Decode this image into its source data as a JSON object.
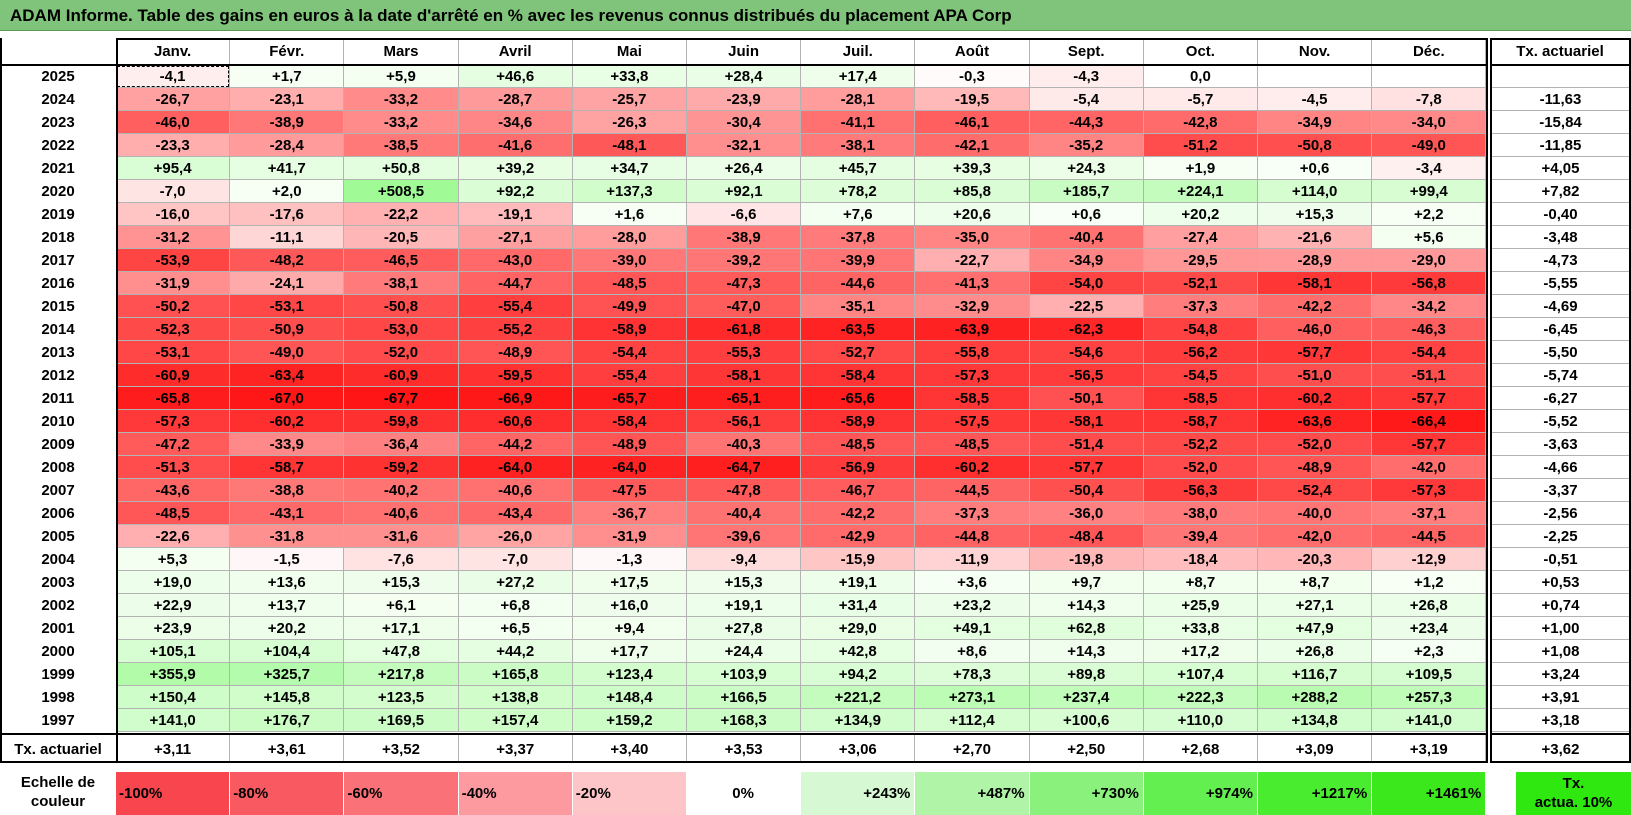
{
  "title": "ADAM Informe. Table des gains en euros à la date d'arrêté en % avec les revenus connus distribués du placement APA Corp",
  "months": [
    "Janv.",
    "Févr.",
    "Mars",
    "Avril",
    "Mai",
    "Juin",
    "Juil.",
    "Août",
    "Sept.",
    "Oct.",
    "Nov.",
    "Déc."
  ],
  "rate_header": "Tx. actuariel",
  "rows": [
    {
      "year": "2025",
      "values": [
        "-4,1",
        "+1,7",
        "+5,9",
        "+46,6",
        "+33,8",
        "+28,4",
        "+17,4",
        "-0,3",
        "-4,3",
        "0,0",
        "",
        ""
      ],
      "rate": ""
    },
    {
      "year": "2024",
      "values": [
        "-26,7",
        "-23,1",
        "-33,2",
        "-28,7",
        "-25,7",
        "-23,9",
        "-28,1",
        "-19,5",
        "-5,4",
        "-5,7",
        "-4,5",
        "-7,8"
      ],
      "rate": "-11,63"
    },
    {
      "year": "2023",
      "values": [
        "-46,0",
        "-38,9",
        "-33,2",
        "-34,6",
        "-26,3",
        "-30,4",
        "-41,1",
        "-46,1",
        "-44,3",
        "-42,8",
        "-34,9",
        "-34,0"
      ],
      "rate": "-15,84"
    },
    {
      "year": "2022",
      "values": [
        "-23,3",
        "-28,4",
        "-38,5",
        "-41,6",
        "-48,1",
        "-32,1",
        "-38,1",
        "-42,1",
        "-35,2",
        "-51,2",
        "-50,8",
        "-49,0"
      ],
      "rate": "-11,85"
    },
    {
      "year": "2021",
      "values": [
        "+95,4",
        "+41,7",
        "+50,8",
        "+39,2",
        "+34,7",
        "+26,4",
        "+45,7",
        "+39,3",
        "+24,3",
        "+1,9",
        "+0,6",
        "-3,4"
      ],
      "rate": "+4,05"
    },
    {
      "year": "2020",
      "values": [
        "-7,0",
        "+2,0",
        "+508,5",
        "+92,2",
        "+137,3",
        "+92,1",
        "+78,2",
        "+85,8",
        "+185,7",
        "+224,1",
        "+114,0",
        "+99,4"
      ],
      "rate": "+7,82"
    },
    {
      "year": "2019",
      "values": [
        "-16,0",
        "-17,6",
        "-22,2",
        "-19,1",
        "+1,6",
        "-6,6",
        "+7,6",
        "+20,6",
        "+0,6",
        "+20,2",
        "+15,3",
        "+2,2"
      ],
      "rate": "-0,40"
    },
    {
      "year": "2018",
      "values": [
        "-31,2",
        "-11,1",
        "-20,5",
        "-27,1",
        "-28,0",
        "-38,9",
        "-37,8",
        "-35,0",
        "-40,4",
        "-27,4",
        "-21,6",
        "+5,6"
      ],
      "rate": "-3,48"
    },
    {
      "year": "2017",
      "values": [
        "-53,9",
        "-48,2",
        "-46,5",
        "-43,0",
        "-39,0",
        "-39,2",
        "-39,9",
        "-22,7",
        "-34,9",
        "-29,5",
        "-28,9",
        "-29,0"
      ],
      "rate": "-4,73"
    },
    {
      "year": "2016",
      "values": [
        "-31,9",
        "-24,1",
        "-38,1",
        "-44,7",
        "-48,5",
        "-47,3",
        "-44,6",
        "-41,3",
        "-54,0",
        "-52,1",
        "-58,1",
        "-56,8"
      ],
      "rate": "-5,55"
    },
    {
      "year": "2015",
      "values": [
        "-50,2",
        "-53,1",
        "-50,8",
        "-55,4",
        "-49,9",
        "-47,0",
        "-35,1",
        "-32,9",
        "-22,5",
        "-37,3",
        "-42,2",
        "-34,2"
      ],
      "rate": "-4,69"
    },
    {
      "year": "2014",
      "values": [
        "-52,3",
        "-50,9",
        "-53,0",
        "-55,2",
        "-58,9",
        "-61,8",
        "-63,5",
        "-63,9",
        "-62,3",
        "-54,8",
        "-46,0",
        "-46,3"
      ],
      "rate": "-6,45"
    },
    {
      "year": "2013",
      "values": [
        "-53,1",
        "-49,0",
        "-52,0",
        "-48,9",
        "-54,4",
        "-55,3",
        "-52,7",
        "-55,8",
        "-54,6",
        "-56,2",
        "-57,7",
        "-54,4"
      ],
      "rate": "-5,50"
    },
    {
      "year": "2012",
      "values": [
        "-60,9",
        "-63,4",
        "-60,9",
        "-59,5",
        "-55,4",
        "-58,1",
        "-58,4",
        "-57,3",
        "-56,5",
        "-54,5",
        "-51,0",
        "-51,1"
      ],
      "rate": "-5,74"
    },
    {
      "year": "2011",
      "values": [
        "-65,8",
        "-67,0",
        "-67,7",
        "-66,9",
        "-65,7",
        "-65,1",
        "-65,6",
        "-58,5",
        "-50,1",
        "-58,5",
        "-60,2",
        "-57,7"
      ],
      "rate": "-6,27"
    },
    {
      "year": "2010",
      "values": [
        "-57,3",
        "-60,2",
        "-59,8",
        "-60,6",
        "-58,4",
        "-56,1",
        "-58,9",
        "-57,5",
        "-58,1",
        "-58,7",
        "-63,6",
        "-66,4"
      ],
      "rate": "-5,52"
    },
    {
      "year": "2009",
      "values": [
        "-47,2",
        "-33,9",
        "-36,4",
        "-44,2",
        "-48,9",
        "-40,3",
        "-48,5",
        "-48,5",
        "-51,4",
        "-52,2",
        "-52,0",
        "-57,7"
      ],
      "rate": "-3,63"
    },
    {
      "year": "2008",
      "values": [
        "-51,3",
        "-58,7",
        "-59,2",
        "-64,0",
        "-64,0",
        "-64,7",
        "-56,9",
        "-60,2",
        "-57,7",
        "-52,0",
        "-48,9",
        "-42,0"
      ],
      "rate": "-4,66"
    },
    {
      "year": "2007",
      "values": [
        "-43,6",
        "-38,8",
        "-40,2",
        "-40,6",
        "-47,5",
        "-47,8",
        "-46,7",
        "-44,5",
        "-50,4",
        "-56,3",
        "-52,4",
        "-57,3"
      ],
      "rate": "-3,37"
    },
    {
      "year": "2006",
      "values": [
        "-48,5",
        "-43,1",
        "-40,6",
        "-43,4",
        "-36,7",
        "-40,4",
        "-42,2",
        "-37,3",
        "-36,0",
        "-38,0",
        "-40,0",
        "-37,1"
      ],
      "rate": "-2,56"
    },
    {
      "year": "2005",
      "values": [
        "-22,6",
        "-31,8",
        "-31,6",
        "-26,0",
        "-31,9",
        "-39,6",
        "-42,9",
        "-44,8",
        "-48,4",
        "-39,4",
        "-42,0",
        "-44,5"
      ],
      "rate": "-2,25"
    },
    {
      "year": "2004",
      "values": [
        "+5,3",
        "-1,5",
        "-7,6",
        "-7,0",
        "-1,3",
        "-9,4",
        "-15,9",
        "-11,9",
        "-19,8",
        "-18,4",
        "-20,3",
        "-12,9"
      ],
      "rate": "-0,51"
    },
    {
      "year": "2003",
      "values": [
        "+19,0",
        "+13,6",
        "+15,3",
        "+27,2",
        "+17,5",
        "+15,3",
        "+19,1",
        "+3,6",
        "+9,7",
        "+8,7",
        "+8,7",
        "+1,2"
      ],
      "rate": "+0,53"
    },
    {
      "year": "2002",
      "values": [
        "+22,9",
        "+13,7",
        "+6,1",
        "+6,8",
        "+16,0",
        "+19,1",
        "+31,4",
        "+23,2",
        "+14,3",
        "+25,9",
        "+27,1",
        "+26,8"
      ],
      "rate": "+0,74"
    },
    {
      "year": "2001",
      "values": [
        "+23,9",
        "+20,2",
        "+17,1",
        "+6,5",
        "+9,4",
        "+27,8",
        "+29,0",
        "+49,1",
        "+62,8",
        "+33,8",
        "+47,9",
        "+23,4"
      ],
      "rate": "+1,00"
    },
    {
      "year": "2000",
      "values": [
        "+105,1",
        "+104,4",
        "+47,8",
        "+44,2",
        "+17,7",
        "+24,4",
        "+42,8",
        "+8,6",
        "+14,3",
        "+17,2",
        "+26,8",
        "+2,3"
      ],
      "rate": "+1,08"
    },
    {
      "year": "1999",
      "values": [
        "+355,9",
        "+325,7",
        "+217,8",
        "+165,8",
        "+123,4",
        "+103,9",
        "+94,2",
        "+78,3",
        "+89,8",
        "+107,4",
        "+116,7",
        "+109,5"
      ],
      "rate": "+3,24"
    },
    {
      "year": "1998",
      "values": [
        "+150,4",
        "+145,8",
        "+123,5",
        "+138,8",
        "+148,4",
        "+166,5",
        "+221,2",
        "+273,1",
        "+237,4",
        "+222,3",
        "+288,2",
        "+257,3"
      ],
      "rate": "+3,91"
    },
    {
      "year": "1997",
      "values": [
        "+141,0",
        "+176,7",
        "+169,5",
        "+157,4",
        "+159,2",
        "+168,3",
        "+134,9",
        "+112,4",
        "+100,6",
        "+110,0",
        "+134,8",
        "+141,0"
      ],
      "rate": "+3,18"
    }
  ],
  "footer": {
    "label": "Tx. actuariel",
    "values": [
      "+3,11",
      "+3,61",
      "+3,52",
      "+3,37",
      "+3,40",
      "+3,53",
      "+3,06",
      "+2,70",
      "+2,50",
      "+2,68",
      "+3,09",
      "+3,19"
    ],
    "rate": "+3,62"
  },
  "legend": {
    "label_line1": "Echelle de",
    "label_line2": "couleur",
    "steps": [
      {
        "text": "-100%",
        "color": "#f8454e",
        "align": "left"
      },
      {
        "text": "-80%",
        "color": "#f95a62",
        "align": "left"
      },
      {
        "text": "-60%",
        "color": "#fa7178",
        "align": "left"
      },
      {
        "text": "-40%",
        "color": "#fc9aa0",
        "align": "left"
      },
      {
        "text": "-20%",
        "color": "#fdc5c8",
        "align": "left"
      },
      {
        "text": "0%",
        "color": "#ffffff",
        "align": "center"
      },
      {
        "text": "+243%",
        "color": "#d6f8d2",
        "align": "right"
      },
      {
        "text": "+487%",
        "color": "#b0f5a7",
        "align": "right"
      },
      {
        "text": "+730%",
        "color": "#8af27c",
        "align": "right"
      },
      {
        "text": "+974%",
        "color": "#64ef51",
        "align": "right"
      },
      {
        "text": "+1217%",
        "color": "#4aec2f",
        "align": "right"
      },
      {
        "text": "+1461%",
        "color": "#3ae81c",
        "align": "right"
      }
    ],
    "rate_line1": "Tx.",
    "rate_line2": "actua. 10%",
    "rate_color": "#2ee80f"
  },
  "colors": {
    "title_bg": "#7fc47a",
    "neg": "#ff0000",
    "pos": "#22ee11"
  }
}
